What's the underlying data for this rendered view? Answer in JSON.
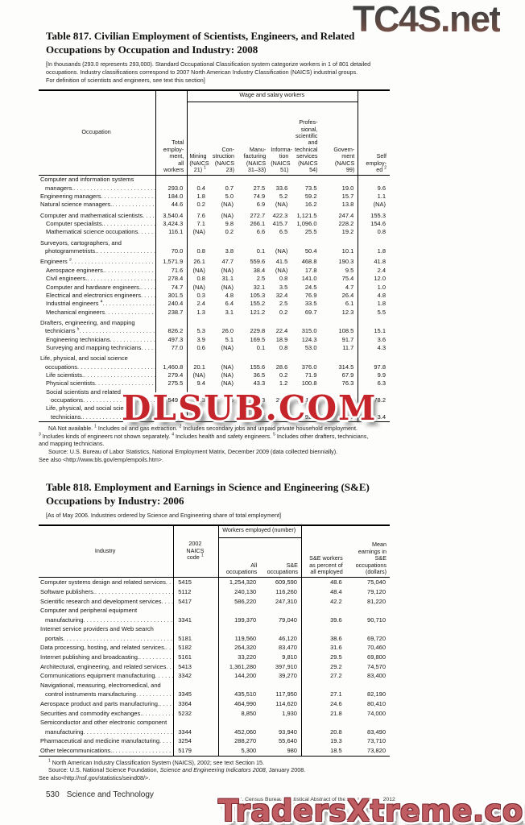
{
  "watermarks": {
    "top": "TC4S.net",
    "middle": "DLSUB.COM",
    "bottom": "TradersXtreme.com"
  },
  "table817": {
    "title": "Table 817. Civilian Employment of Scientists, Engineers, and Related\nOccupations by Occupation and Industry: 2008",
    "note": "[In thousands (293.0 represents 293,000). Standard Occupational Classification system categorize workers in 1 of 801 detailed\noccupations. Industry classifications correspond to 2007 North American Industry Classification (NAICS) industrial groups.\nFor definition of scientists and engineers, see text this section]",
    "wage_group": "Wage and salary workers",
    "col_labels": [
      "Occupation",
      "Total\nemploy-\nment,\nall\nworkers",
      "Mining\n(NAICS\n21) ^1",
      "Con-\nstruction\n(NAICS\n23)",
      "Manu-\nfacturing\n(NAICS\n31–33)",
      "Informa-\ntion\n(NAICS\n51)",
      "Profes-\nsional,\nscientific\nand\ntechnical\nservices\n(NAICS\n54)",
      "Govern-\nment\n(NAICS\n99)",
      "Self\nemploy-\ned ^2"
    ],
    "rows": [
      {
        "label": "Computer and information systems",
        "label2": "managers.",
        "values": [
          "293.0",
          "0.4",
          "0.7",
          "27.5",
          "33.6",
          "73.5",
          "19.0",
          "9.6"
        ]
      },
      {
        "label": "Engineering managers",
        "values": [
          "184.0",
          "1.8",
          "5.0",
          "74.9",
          "5.2",
          "59.2",
          "15.7",
          "1.1"
        ]
      },
      {
        "label": "Natural science managers.",
        "values": [
          "44.6",
          "0.2",
          "(NA)",
          "6.9",
          "(NA)",
          "16.2",
          "13.8",
          "(NA)"
        ]
      },
      {
        "label": "Computer and mathematical scientists",
        "gap": 1,
        "values": [
          "3,540.4",
          "7.6",
          "(NA)",
          "272.7",
          "422.3",
          "1,121.5",
          "247.4",
          "155.3"
        ]
      },
      {
        "label": "Computer specialists.",
        "indent": 1,
        "values": [
          "3,424.3",
          "7.1",
          "9.8",
          "266.1",
          "415.7",
          "1,096.0",
          "228.2",
          "154.6"
        ]
      },
      {
        "label": "Mathematical science occupations",
        "indent": 1,
        "values": [
          "116.1",
          "(NA)",
          "0.2",
          "6.6",
          "6.5",
          "25.5",
          "19.2",
          "0.8"
        ]
      },
      {
        "label": "Surveyors, cartographers, and",
        "label2": "photogrammetrists.",
        "gap": 1,
        "values": [
          "70.0",
          "0.8",
          "3.8",
          "0.1",
          "(NA)",
          "50.4",
          "10.1",
          "1.8"
        ]
      },
      {
        "label": "Engineers ^3",
        "gap": 1,
        "values": [
          "1,571.9",
          "26.1",
          "47.7",
          "559.6",
          "41.5",
          "468.8",
          "190.3",
          "41.8"
        ]
      },
      {
        "label": "Aerospace engineers.",
        "indent": 1,
        "values": [
          "71.6",
          "(NA)",
          "(NA)",
          "38.4",
          "(NA)",
          "17.8",
          "9.5",
          "2.4"
        ]
      },
      {
        "label": "Civil engineers.",
        "indent": 1,
        "values": [
          "278.4",
          "0.8",
          "31.1",
          "2.5",
          "0.8",
          "141.0",
          "75.4",
          "12.0"
        ]
      },
      {
        "label": "Computer and hardware engineers.",
        "indent": 1,
        "values": [
          "74.7",
          "(NA)",
          "(NA)",
          "32.1",
          "3.5",
          "24.5",
          "4.7",
          "1.0"
        ]
      },
      {
        "label": "Electrical and electronics engineers",
        "indent": 1,
        "values": [
          "301.5",
          "0.3",
          "4.8",
          "105.3",
          "32.4",
          "76.9",
          "26.4",
          "4.8"
        ]
      },
      {
        "label": "Industrial engineers ^4",
        "indent": 1,
        "values": [
          "240.4",
          "2.4",
          "6.4",
          "155.2",
          "2.5",
          "33.5",
          "6.1",
          "1.8"
        ]
      },
      {
        "label": "Mechanical engineers",
        "indent": 1,
        "values": [
          "238.7",
          "1.3",
          "3.1",
          "121.2",
          "0.2",
          "69.7",
          "12.3",
          "5.5"
        ]
      },
      {
        "label": "Drafters, engineering, and mapping",
        "label2": "technicians ^5",
        "gap": 1,
        "values": [
          "826.2",
          "5.3",
          "26.0",
          "229.8",
          "22.4",
          "315.0",
          "108.5",
          "15.1"
        ]
      },
      {
        "label": "Engineering technicians",
        "indent": 1,
        "values": [
          "497.3",
          "3.9",
          "5.1",
          "169.5",
          "18.9",
          "124.3",
          "91.7",
          "3.6"
        ]
      },
      {
        "label": "Surveying and mapping technicians",
        "indent": 1,
        "values": [
          "77.0",
          "0.6",
          "(NA)",
          "0.1",
          "0.8",
          "53.0",
          "11.7",
          "4.3"
        ]
      },
      {
        "label": "Life, physical, and social science",
        "label2": "occupations",
        "gap": 1,
        "values": [
          "1,460.8",
          "20.1",
          "(NA)",
          "155.6",
          "28.6",
          "376.0",
          "314.5",
          "97.8"
        ]
      },
      {
        "label": "Life scientists.",
        "indent": 1,
        "values": [
          "279.4",
          "(NA)",
          "(NA)",
          "36.5",
          "0.2",
          "71.9",
          "67.9",
          "9.9"
        ]
      },
      {
        "label": "Physical scientists",
        "indent": 1,
        "values": [
          "275.5",
          "9.4",
          "(NA)",
          "43.3",
          "1.2",
          "100.8",
          "76.3",
          "6.3"
        ]
      },
      {
        "label": "Social scientists and related",
        "label2": "occupations",
        "indent": 1,
        "values": [
          "549.4",
          "0.3",
          "2.6",
          "29.3",
          "26.7",
          "111.0",
          "82.6",
          "78.2"
        ]
      },
      {
        "label": "Life, physical, and social science",
        "label2": "technicians.",
        "indent": 1,
        "values": [
          "",
          "",
          "",
          "",
          "",
          "92.4",
          "87.7",
          "3.4"
        ]
      }
    ],
    "footnote": "NA Not available. ^1 Includes oil and gas extraction. ^2 Includes secondary jobs and unpaid private household employment.\n^3 Includes kinds of engineers not shown separately. ^4 Includes health and safety engineers. ^5 Includes other drafters, technicians,\nand mapping technicians.",
    "source": "Source: U.S. Bureau of Labor Statistics, National Employment Matrix, December 2009 (data collected biennially).\nSee also <http://www.bls.gov/emp/empoils.htm>."
  },
  "table818": {
    "title": "Table 818. Employment and Earnings in Science and Engineering (S&E)\nOccupations by Industry: 2006",
    "note": "[As of May 2006. Industries ordered by Science and Engineering share of total employment]",
    "col_labels": {
      "industry": "Industry",
      "naics": "2002\nNAICS\ncode ^1",
      "workers_group": "Workers employed (number)",
      "all_occ": "All\noccupations",
      "se_occ": "S&E\noccupations",
      "pct": "S&E workers\nas percent of\nall employed",
      "mean": "Mean\nearnings in\nS&E\noccupations\n(dollars)"
    },
    "rows": [
      {
        "label": "Computer systems design and related services",
        "values": [
          "5415",
          "1,254,320",
          "609,590",
          "48.6",
          "75,040"
        ]
      },
      {
        "label": "Software publishers.",
        "values": [
          "5112",
          "240,130",
          "116,260",
          "48.4",
          "79,120"
        ]
      },
      {
        "label": "Scientific research and development services",
        "values": [
          "5417",
          "586,220",
          "247,310",
          "42.2",
          "81,220"
        ]
      },
      {
        "label": "Computer and peripheral equipment",
        "label2": "manufacturing",
        "values": [
          "3341",
          "199,370",
          "79,040",
          "39.6",
          "90,710"
        ]
      },
      {
        "label": "Internet service providers and Web search",
        "label2": "portals",
        "values": [
          "5181",
          "119,560",
          "46,120",
          "38.6",
          "69,720"
        ]
      },
      {
        "label": "Data processing, hosting, and related services.",
        "values": [
          "5182",
          "264,320",
          "83,470",
          "31.6",
          "70,460"
        ]
      },
      {
        "label": "Internet publishing and broadcasting.",
        "values": [
          "5161",
          "33,220",
          "9,810",
          "29.5",
          "69,800"
        ]
      },
      {
        "label": "Architectural, engineering, and related services",
        "values": [
          "5413",
          "1,361,280",
          "397,910",
          "29.2",
          "74,570"
        ]
      },
      {
        "label": "Communications equipment manufacturing",
        "values": [
          "3342",
          "144,200",
          "39,270",
          "27.2",
          "83,400"
        ]
      },
      {
        "label": "Navigational, measuring, electromedical, and",
        "label2": "control instruments manufacturing",
        "values": [
          "3345",
          "435,510",
          "117,950",
          "27.1",
          "82,190"
        ]
      },
      {
        "label": "Aerospace product and parts manufacturing.",
        "values": [
          "3364",
          "464,990",
          "114,620",
          "24.6",
          "80,410"
        ]
      },
      {
        "label": "Securities and commodity exchanges.",
        "values": [
          "5232",
          "8,850",
          "1,930",
          "21.8",
          "74,000"
        ]
      },
      {
        "label": "Semiconductor and other electronic  component",
        "label2": "manufacturing",
        "values": [
          "3344",
          "452,060",
          "93,940",
          "20.8",
          "83,490"
        ]
      },
      {
        "label": "Pharmaceutical and medicine manufacturing",
        "values": [
          "3254",
          "288,270",
          "55,640",
          "19.3",
          "73,710"
        ]
      },
      {
        "label": "Other telecommunications.",
        "values": [
          "5179",
          "5,300",
          "980",
          "18.5",
          "73,820"
        ]
      }
    ],
    "footnote": "^1 North American Industry Classification System (NAICS), 2002; see text Section 15.",
    "source": "Source: U.S. National Science Foundation, ~Science and Engineering Indicators 2008~, January 2008.\nSee also<http://nsf.gov/statistics/seind08/>."
  },
  "footer": {
    "page_number": "530",
    "section": "Science and Technology",
    "source_line": "U.S. Census Bureau, Statistical Abstract of the United States: 2012"
  }
}
